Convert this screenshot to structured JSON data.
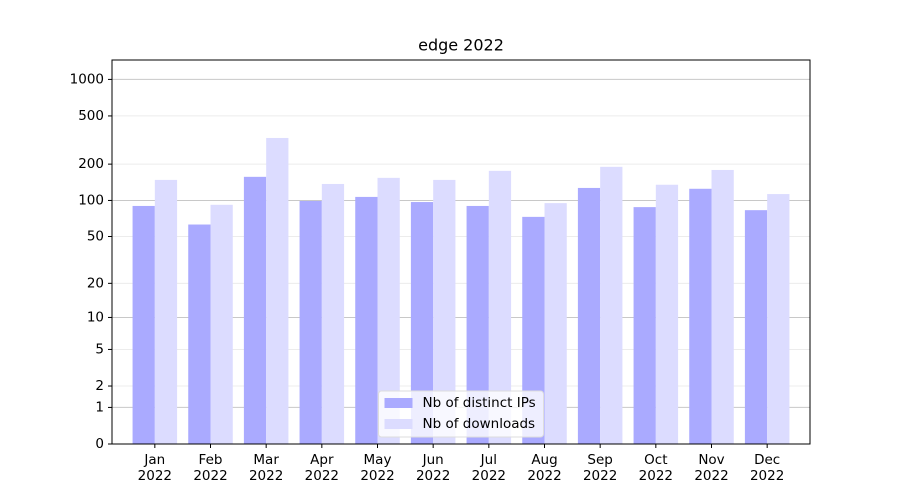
{
  "chart_data": {
    "type": "bar",
    "title": "edge 2022",
    "categories": [
      "Jan\n2022",
      "Feb\n2022",
      "Mar\n2022",
      "Apr\n2022",
      "May\n2022",
      "Jun\n2022",
      "Jul\n2022",
      "Aug\n2022",
      "Sep\n2022",
      "Oct\n2022",
      "Nov\n2022",
      "Dec\n2022"
    ],
    "series": [
      {
        "name": "Nb of distinct IPs",
        "color": "#aaaaff",
        "values": [
          90,
          63,
          157,
          99,
          107,
          97,
          90,
          73,
          127,
          88,
          125,
          83
        ]
      },
      {
        "name": "Nb of downloads",
        "color": "#dcdcff",
        "values": [
          148,
          92,
          329,
          137,
          154,
          148,
          176,
          95,
          190,
          135,
          179,
          113
        ]
      }
    ],
    "yscale": "log1p",
    "ylim": [
      0,
      1445
    ],
    "yticks": [
      0,
      1,
      2,
      5,
      10,
      20,
      50,
      100,
      200,
      500,
      1000
    ],
    "grid": true,
    "legend": "lower center"
  }
}
